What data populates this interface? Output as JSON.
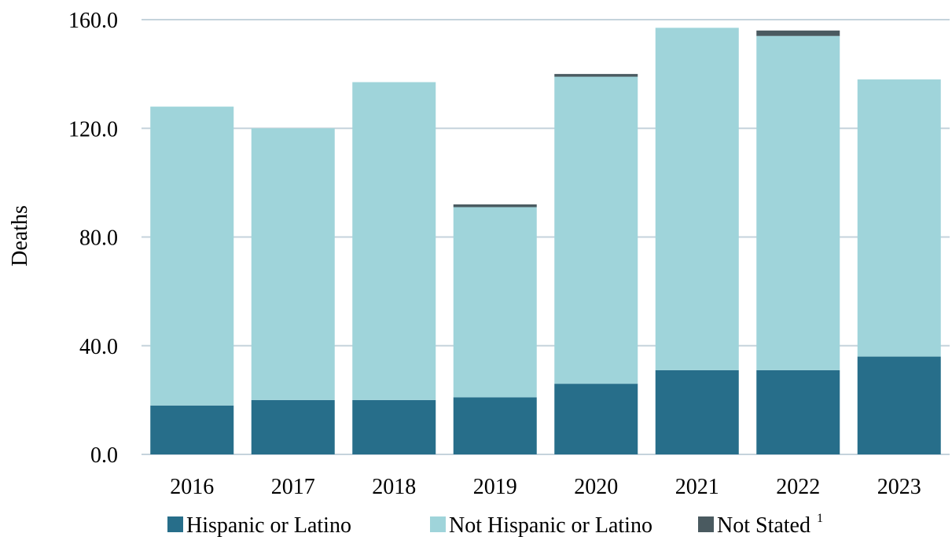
{
  "chart_data": {
    "type": "bar",
    "stacked": true,
    "categories": [
      "2016",
      "2017",
      "2018",
      "2019",
      "2020",
      "2021",
      "2022",
      "2023"
    ],
    "series": [
      {
        "name": "Hispanic or Latino",
        "color": "#276e8a",
        "values": [
          18,
          20,
          20,
          21,
          26,
          31,
          31,
          36
        ]
      },
      {
        "name": "Not Hispanic or Latino",
        "color": "#9fd4da",
        "values": [
          110,
          100,
          117,
          70,
          113,
          126,
          123,
          102
        ]
      },
      {
        "name": "Not Stated",
        "superscript": "1",
        "color": "#4a5a60",
        "values": [
          0,
          0,
          0,
          1,
          1,
          0,
          2,
          0
        ]
      }
    ],
    "ylabel": "Deaths",
    "xlabel": "",
    "ylim": [
      0,
      160
    ],
    "yticks": [
      "0.0",
      "40.0",
      "80.0",
      "120.0",
      "160.0"
    ],
    "grid": true,
    "legend_position": "bottom"
  }
}
